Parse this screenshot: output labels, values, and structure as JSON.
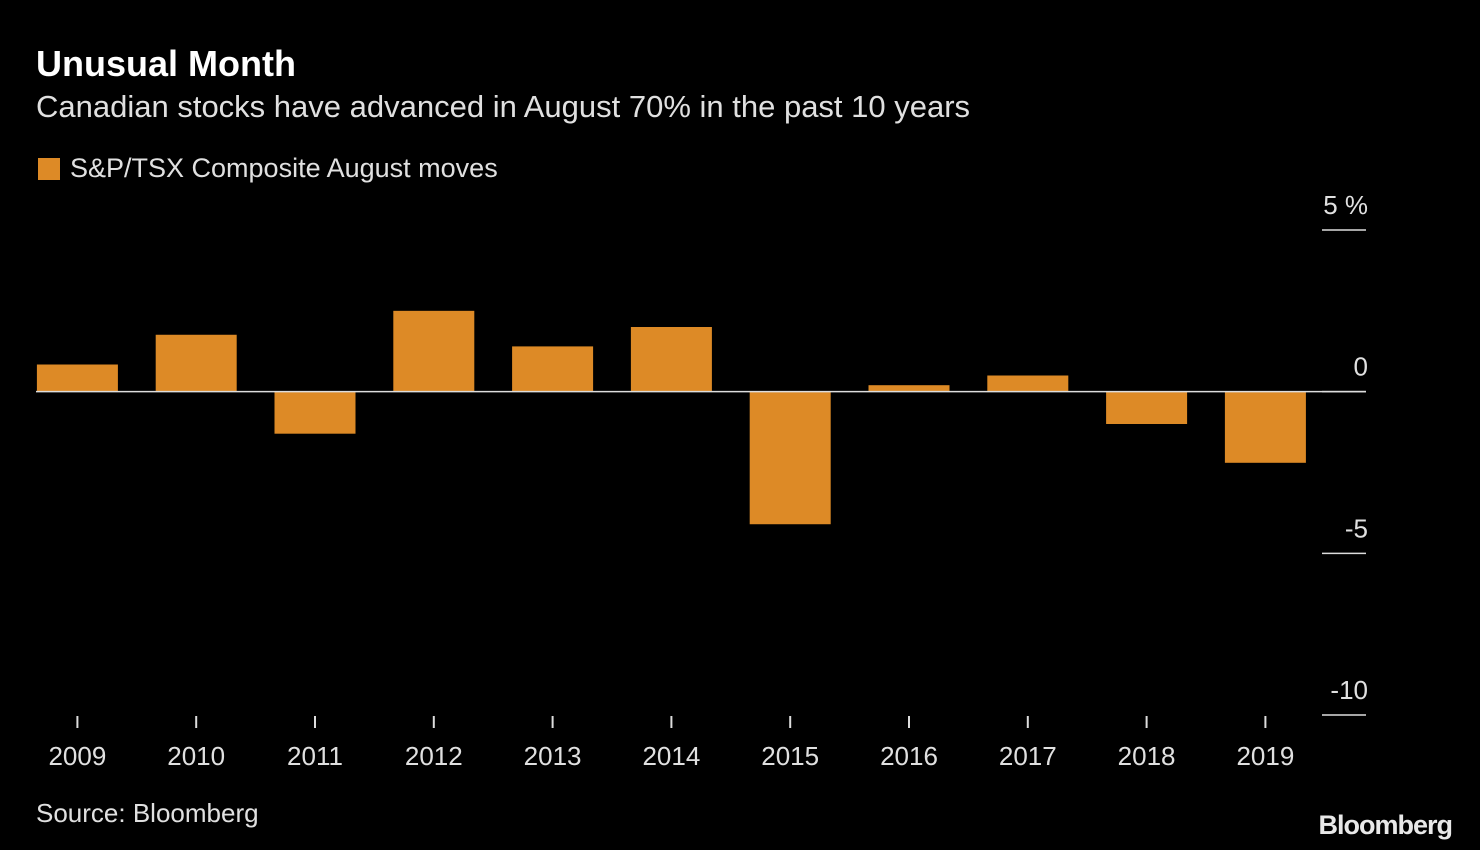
{
  "chart_data": {
    "type": "bar",
    "title": "Unusual Month",
    "subtitle": "Canadian stocks have advanced in August 70% in the past 10 years",
    "series": [
      {
        "name": "S&P/TSX Composite August moves",
        "color": "#dd8a26",
        "values": [
          0.84,
          1.76,
          -1.3,
          2.5,
          1.4,
          2.0,
          -4.1,
          0.2,
          0.5,
          -1.0,
          -2.2
        ]
      }
    ],
    "categories": [
      "2009",
      "2010",
      "2011",
      "2012",
      "2013",
      "2014",
      "2015",
      "2016",
      "2017",
      "2018",
      "2019"
    ],
    "ylim": [
      -10,
      5
    ],
    "yticks": [
      {
        "value": 5,
        "label": "5 %"
      },
      0,
      -5,
      -10
    ],
    "source": "Source: Bloomberg",
    "logo": "Bloomberg"
  }
}
